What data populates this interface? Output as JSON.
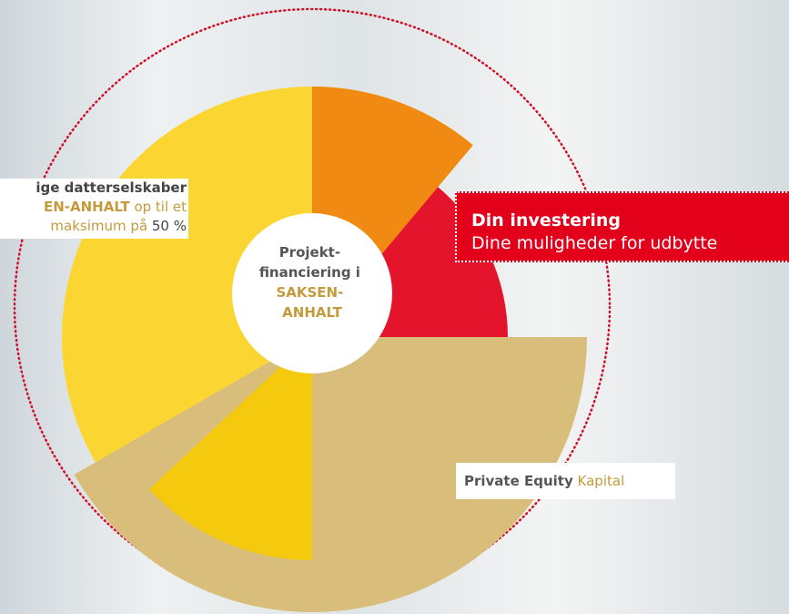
{
  "left_label": {
    "line1": "ige datterselskaber",
    "line2_bold": "EN-ANHALT",
    "line2_rest": "op til et",
    "line3_text": "maksimum på",
    "line3_value": "50 %"
  },
  "center": {
    "line1": "Projekt-",
    "line2": "financiering i",
    "line3": "SAKSEN-",
    "line4": "ANHALT"
  },
  "investment": {
    "title": "Din investering",
    "subtitle": "Dine muligheder for udbytte"
  },
  "equity": {
    "bold": "Private Equity",
    "rest": "Kapital"
  }
}
